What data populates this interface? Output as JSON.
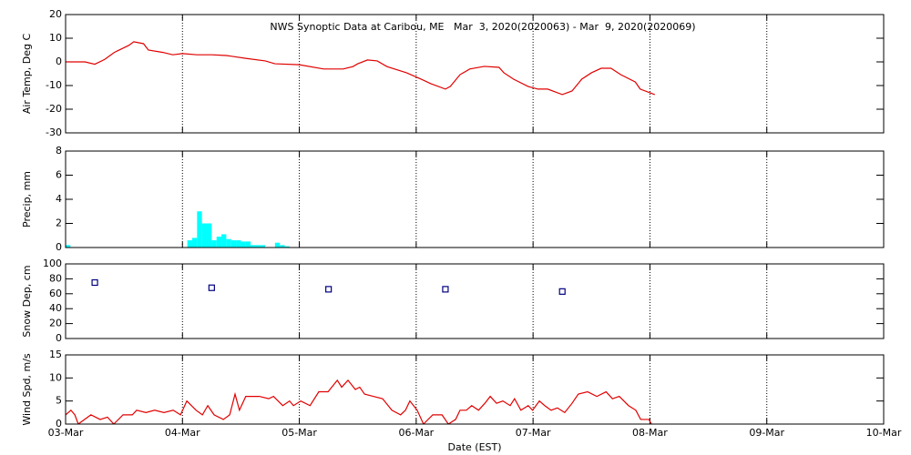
{
  "chart_data": [
    {
      "type": "line",
      "title": "NWS Synoptic Data at Caribou, ME   Mar  3, 2020(2020063) - Mar  9, 2020(2020069)",
      "ylabel": "Air Temp, Deg C",
      "xlim": [
        0,
        168
      ],
      "xticks": [
        0,
        24,
        48,
        72,
        96,
        120,
        144,
        168
      ],
      "grid": true,
      "ylim": [
        -30,
        20
      ],
      "yticks": [
        -30,
        -20,
        -10,
        0,
        10,
        20
      ],
      "x": [
        0,
        4,
        6,
        8,
        10,
        13,
        14,
        16,
        17,
        20,
        22,
        24,
        27,
        30,
        33,
        37,
        41,
        43,
        48,
        53,
        57,
        59,
        60,
        62,
        64,
        66,
        70,
        73,
        75,
        78,
        79,
        81,
        83,
        86,
        89,
        90,
        92,
        95,
        97,
        99,
        102,
        104,
        106,
        108,
        110,
        112,
        114,
        117,
        118,
        121
      ],
      "series": [
        {
          "color": "#e00000",
          "values": [
            0,
            0,
            -1,
            1,
            4,
            7,
            8.5,
            7.7,
            5,
            4,
            3,
            3.5,
            3,
            3,
            2.7,
            1.5,
            0.4,
            -0.8,
            -1.2,
            -3,
            -3,
            -2,
            -0.8,
            0.8,
            0.4,
            -2,
            -4.6,
            -7.3,
            -9.2,
            -11.5,
            -10.4,
            -5.4,
            -3,
            -1.9,
            -2.3,
            -4.6,
            -7.3,
            -10.4,
            -11.5,
            -11.5,
            -13.8,
            -12.3,
            -7.3,
            -4.6,
            -2.7,
            -2.7,
            -5.4,
            -8.5,
            -11.5,
            -13.8
          ]
        }
      ]
    },
    {
      "type": "bar",
      "ylabel": "Precip, mm",
      "xlim": [
        0,
        168
      ],
      "xticks": [
        0,
        24,
        48,
        72,
        96,
        120,
        144,
        168
      ],
      "grid": true,
      "ylim": [
        0,
        8
      ],
      "yticks": [
        0,
        2,
        4,
        6,
        8
      ],
      "x": [
        0,
        25,
        26,
        27,
        28,
        29,
        30,
        31,
        32,
        33,
        34,
        35,
        36,
        37,
        38,
        39,
        40,
        43,
        44,
        45
      ],
      "series": [
        {
          "color": "#00ffff",
          "values": [
            0.2,
            0.6,
            0.8,
            3.0,
            2.0,
            2.0,
            0.6,
            0.9,
            1.1,
            0.7,
            0.6,
            0.6,
            0.5,
            0.5,
            0.2,
            0.2,
            0.2,
            0.4,
            0.2,
            0.1
          ]
        }
      ]
    },
    {
      "type": "scatter",
      "ylabel": "Snow Dep, cm",
      "xlim": [
        0,
        168
      ],
      "xticks": [
        0,
        24,
        48,
        72,
        96,
        120,
        144,
        168
      ],
      "grid": true,
      "ylim": [
        0,
        100
      ],
      "yticks": [
        0,
        20,
        40,
        60,
        80,
        100
      ],
      "x": [
        6,
        30,
        54,
        78,
        102
      ],
      "series": [
        {
          "color": "#000080",
          "values": [
            75,
            68,
            66,
            66,
            63
          ]
        }
      ]
    },
    {
      "type": "line",
      "ylabel": "Wind Spd, m/s",
      "xlabel": "Date (EST)",
      "xlim": [
        0,
        168
      ],
      "xticks": [
        {
          "value": 0,
          "label": "03-Mar"
        },
        {
          "value": 24,
          "label": "04-Mar"
        },
        {
          "value": 48,
          "label": "05-Mar"
        },
        {
          "value": 72,
          "label": "06-Mar"
        },
        {
          "value": 96,
          "label": "07-Mar"
        },
        {
          "value": 120,
          "label": "08-Mar"
        },
        {
          "value": 144,
          "label": "09-Mar"
        },
        {
          "value": 168,
          "label": "10-Mar"
        }
      ],
      "grid": true,
      "ylim": [
        0,
        15
      ],
      "yticks": [
        0,
        5,
        10,
        15
      ],
      "x": [
        0,
        1.1,
        1.9,
        2.6,
        5.2,
        7.1,
        8.6,
        9.9,
        11.8,
        13.7,
        14.6,
        16.5,
        18.3,
        20.2,
        22.1,
        23.6,
        24.9,
        26.8,
        28.1,
        29.2,
        30.5,
        32.4,
        33.7,
        34.8,
        35.7,
        37.0,
        39.8,
        41.7,
        42.7,
        44.6,
        46.0,
        46.8,
        48.3,
        50.2,
        52.0,
        53.9,
        55.8,
        56.7,
        58.0,
        59.5,
        60.4,
        61.4,
        63.2,
        65.1,
        67.0,
        68.8,
        69.8,
        70.7,
        72.2,
        73.5,
        75.4,
        77.3,
        78.6,
        80.1,
        81.0,
        82.3,
        83.4,
        84.8,
        86.1,
        87.2,
        88.5,
        89.8,
        91.3,
        92.2,
        93.5,
        95.0,
        95.9,
        97.3,
        98.4,
        99.7,
        101.0,
        102.5,
        104.0,
        105.3,
        107.2,
        109.1,
        111.0,
        112.3,
        113.7,
        115.6,
        117.1,
        118.1,
        119.8,
        120.3
      ],
      "series": [
        {
          "color": "#e00000",
          "values": [
            2,
            3,
            2,
            0,
            2,
            1,
            1.5,
            0,
            2,
            2,
            3,
            2.5,
            3,
            2.5,
            3,
            2,
            5,
            3,
            2,
            4,
            2,
            1,
            2,
            6.5,
            3,
            6,
            6,
            5.5,
            6,
            4,
            5,
            4,
            5,
            4,
            7,
            7,
            9.5,
            8,
            9.5,
            7.5,
            8,
            6.5,
            6,
            5.5,
            3,
            2,
            3,
            5,
            3,
            0,
            2,
            2,
            0,
            1,
            3,
            3,
            4,
            3,
            4.5,
            6,
            4.5,
            5,
            4,
            5.5,
            3,
            4,
            3,
            5,
            4,
            3,
            3.5,
            2.5,
            4.5,
            6.5,
            7,
            6,
            7,
            5.5,
            6,
            4,
            3,
            1,
            1,
            0
          ]
        }
      ]
    }
  ]
}
